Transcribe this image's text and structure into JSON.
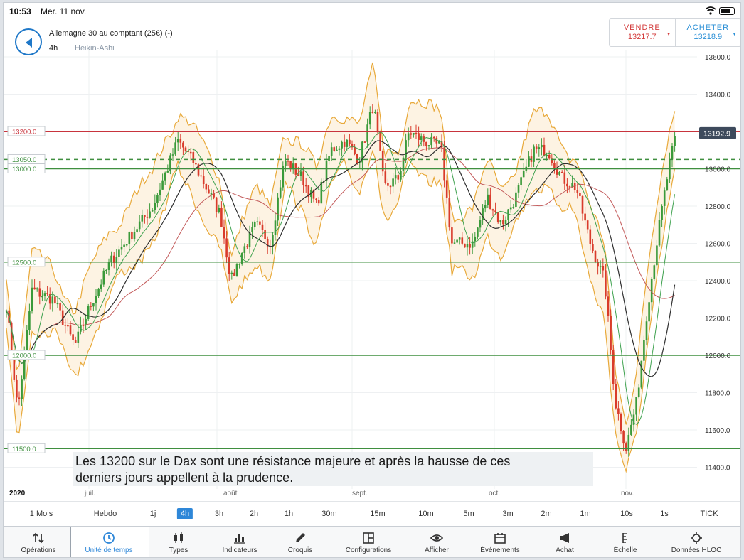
{
  "status_bar": {
    "time": "10:53",
    "date": "Mer. 11 nov."
  },
  "header": {
    "instrument": "Allemagne 30 au comptant (25€) (-)",
    "timeframe": "4h",
    "chart_type": "Heikin-Ashi",
    "sell": {
      "label": "VENDRE",
      "price": "13217.7"
    },
    "buy": {
      "label": "ACHETER",
      "price": "13218.9"
    }
  },
  "chart": {
    "current_price": "13192.9",
    "price_ticks": [
      "13600.0",
      "13400.0",
      "13200.0",
      "13000.0",
      "12800.0",
      "12600.0",
      "12400.0",
      "12200.0",
      "12000.0",
      "11800.0",
      "11600.0",
      "11400.0"
    ],
    "level_labels": [
      "13200.0",
      "13050.0",
      "13000.0",
      "12500.0",
      "12000.0",
      "11500.0"
    ],
    "date_labels": [
      "2020",
      "juil.",
      "août",
      "sept.",
      "oct.",
      "nov."
    ],
    "colors": {
      "up": "#3a9a3a",
      "down": "#d93b2b",
      "band": "#e8a93a",
      "band_fill": "#fdf3e3",
      "resistance": "#c8343d",
      "support": "#3f8f3f",
      "ma_fast": "#2f2f2f",
      "ma_mid": "#3fa24f",
      "ma_slow": "#c35a5a"
    }
  },
  "caption": {
    "line1": "Les 13200 sur le Dax sont une résistance majeure et après la hausse de ces",
    "line2": "derniers jours appellent à la prudence."
  },
  "time_tabs": [
    "1 Mois",
    "Hebdo",
    "1j",
    "4h",
    "3h",
    "2h",
    "1h",
    "30m",
    "15m",
    "10m",
    "5m",
    "3m",
    "2m",
    "1m",
    "10s",
    "1s",
    "TICK"
  ],
  "time_tab_active": "4h",
  "toolbar": [
    {
      "label": "Opérations",
      "icon": "transfer-arrows-icon"
    },
    {
      "label": "Unité de temps",
      "icon": "clock-icon"
    },
    {
      "label": "Types",
      "icon": "candle-type-icon"
    },
    {
      "label": "Indicateurs",
      "icon": "bars-icon"
    },
    {
      "label": "Croquis",
      "icon": "pencil-icon"
    },
    {
      "label": "Configurations",
      "icon": "layout-icon"
    },
    {
      "label": "Afficher",
      "icon": "eye-icon"
    },
    {
      "label": "Événements",
      "icon": "calendar-icon"
    },
    {
      "label": "Achat",
      "icon": "megaphone-icon"
    },
    {
      "label": "Échelle",
      "icon": "scale-icon"
    },
    {
      "label": "Données HLOC",
      "icon": "crosshair-icon"
    }
  ],
  "toolbar_active": "Unité de temps"
}
